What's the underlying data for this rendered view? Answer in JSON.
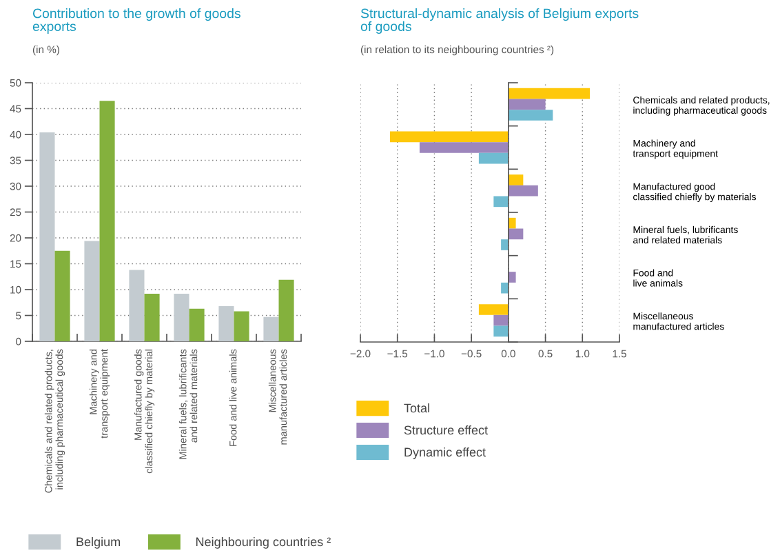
{
  "chart_data": [
    {
      "type": "bar",
      "title": "Contribution to the growth of goods\nexports",
      "subtitle": "(in %)",
      "categories": [
        "Chemicals and related products,\nincluding pharmaceutical goods",
        "Machinery and\ntransport equipment",
        "Manufactured goods\nclassified chiefly by material",
        "Mineral fuels, lubrificants\nand related materials",
        "Food and live animals",
        "Miscellaneous\nmanufactured articles"
      ],
      "series": [
        {
          "name": "Belgium",
          "color": "#c3cbd0",
          "values": [
            40.4,
            19.4,
            13.8,
            9.2,
            6.8,
            4.7
          ]
        },
        {
          "name": "Neighbouring countries ²",
          "color": "#84b13d",
          "values": [
            17.5,
            46.5,
            9.2,
            6.3,
            5.8,
            11.9
          ]
        }
      ],
      "ylim": [
        0,
        50
      ],
      "yticks": [
        0,
        5,
        10,
        15,
        20,
        25,
        30,
        35,
        40,
        45,
        50
      ],
      "grid": "y",
      "legend": "bottom"
    },
    {
      "type": "bar",
      "orientation": "horizontal",
      "title": "Structural-dynamic analysis of Belgium exports\nof goods",
      "subtitle": "(in relation to its neighbouring countries ²)",
      "categories": [
        "Chemicals and related products,\nincluding pharmaceutical goods",
        "Machinery and\ntransport equipment",
        "Manufactured good\nclassified chiefly by materials",
        "Mineral fuels, lubrificants\nand related materials",
        "Food and\nlive animals",
        "Miscellaneous\nmanufactured articles"
      ],
      "series": [
        {
          "name": "Total",
          "color": "#fec80a",
          "values": [
            1.1,
            -1.6,
            0.2,
            0.1,
            null,
            -0.4
          ]
        },
        {
          "name": "Structure effect",
          "color": "#9d86bc",
          "values": [
            0.5,
            -1.2,
            0.4,
            0.2,
            0.1,
            -0.2
          ]
        },
        {
          "name": "Dynamic effect",
          "color": "#6fbbd1",
          "values": [
            0.6,
            -0.4,
            -0.2,
            -0.1,
            -0.1,
            -0.2
          ]
        }
      ],
      "xlim": [
        -2.0,
        1.5
      ],
      "xticks": [
        {
          "value": -2.0,
          "label": "−2.0"
        },
        {
          "value": -1.5,
          "label": "−1.5"
        },
        {
          "value": -1.0,
          "label": "−1.0"
        },
        {
          "value": -0.5,
          "label": "−0.5"
        },
        {
          "value": 0.0,
          "label": "0.0"
        },
        0.5,
        {
          "value": 1.0,
          "label": "1.0"
        },
        1.5
      ],
      "grid": "x",
      "legend": "bottom"
    }
  ]
}
